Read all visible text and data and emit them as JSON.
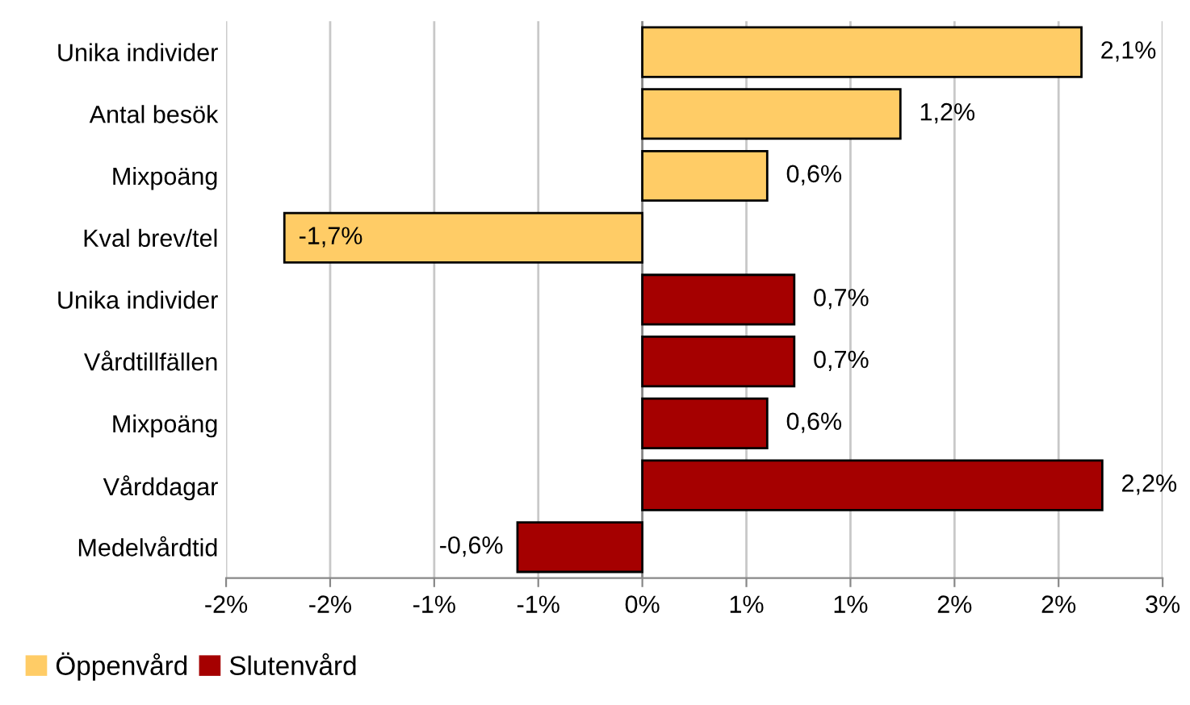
{
  "chart_data": {
    "type": "bar",
    "orientation": "horizontal",
    "categories": [
      "Unika individer",
      "Antal besök",
      "Mixpoäng",
      "Kval brev/tel",
      "Unika individer",
      "Vårdtillfällen",
      "Mixpoäng",
      "Vårddagar",
      "Medelvårdtid"
    ],
    "series": [
      {
        "name": "Öppenvård",
        "color": "#ffcc66",
        "values": [
          2.11,
          1.24,
          0.6,
          -1.72,
          null,
          null,
          null,
          null,
          null
        ],
        "value_labels": [
          "2,1%",
          "1,2%",
          "0,6%",
          "-1,7%",
          null,
          null,
          null,
          null,
          null
        ]
      },
      {
        "name": "Slutenvård",
        "color": "#a50000",
        "values": [
          null,
          null,
          null,
          null,
          0.73,
          0.73,
          0.6,
          2.21,
          -0.6
        ],
        "value_labels": [
          null,
          null,
          null,
          null,
          "0,7%",
          "0,7%",
          "0,6%",
          "2,2%",
          "-0,6%"
        ]
      }
    ],
    "xlim": [
      -2,
      2.5
    ],
    "xticks": [
      {
        "value": -2,
        "label": "-2%"
      },
      {
        "value": -1.5,
        "label": "-2%"
      },
      {
        "value": -1,
        "label": "-1%"
      },
      {
        "value": -0.5,
        "label": "-1%"
      },
      {
        "value": 0,
        "label": "0%"
      },
      {
        "value": 0.5,
        "label": "1%"
      },
      {
        "value": 1,
        "label": "1%"
      },
      {
        "value": 1.5,
        "label": "2%"
      },
      {
        "value": 2,
        "label": "2%"
      },
      {
        "value": 2.5,
        "label": "3%"
      }
    ],
    "grid": "x",
    "legend": "bottom left"
  }
}
